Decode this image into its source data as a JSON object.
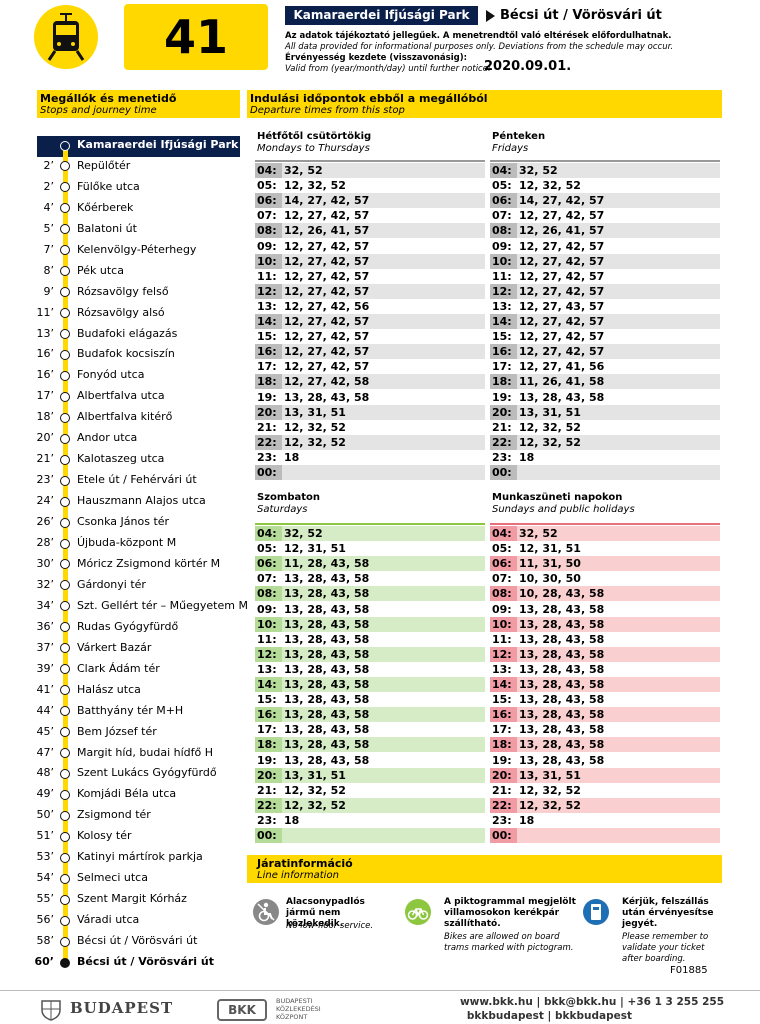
{
  "header": {
    "line": "41",
    "from": "Kamaraerdei Ifjúsági Park",
    "to": "Bécsi út / Vörösvári út",
    "note_hu": "Az adatok tájékoztató jellegűek. A menetrendtől való eltérések előfordulhatnak.",
    "note_en": "All data provided for informational purposes only. Deviations from the schedule may occur.",
    "valid_hu": "Érvényesség kezdete (visszavonásig):",
    "valid_en": "Valid from (year/month/day) until further notice:",
    "valid_date": "2020.09.01."
  },
  "stops": {
    "title_hu": "Megállók és menetidő",
    "title_en": "Stops and journey time",
    "items": [
      {
        "name": "Kamaraerdei Ifjúsági Park"
      },
      {
        "time": "2’",
        "name": "Repülőtér"
      },
      {
        "time": "2’",
        "name": "Fülőke utca"
      },
      {
        "time": "4’",
        "name": "Kőérberek"
      },
      {
        "time": "5’",
        "name": "Balatoni út"
      },
      {
        "time": "7’",
        "name": "Kelenvölgy-Péterhegy"
      },
      {
        "time": "8’",
        "name": "Pék utca"
      },
      {
        "time": "9’",
        "name": "Rózsavölgy felső"
      },
      {
        "time": "11’",
        "name": "Rózsavölgy alsó"
      },
      {
        "time": "13’",
        "name": "Budafoki elágazás"
      },
      {
        "time": "16’",
        "name": "Budafok kocsiszín"
      },
      {
        "time": "16’",
        "name": "Fonyód utca"
      },
      {
        "time": "17’",
        "name": "Albertfalva utca"
      },
      {
        "time": "18’",
        "name": "Albertfalva kitérő"
      },
      {
        "time": "20’",
        "name": "Andor utca"
      },
      {
        "time": "21’",
        "name": "Kalotaszeg utca"
      },
      {
        "time": "23’",
        "name": "Etele út / Fehérvári út"
      },
      {
        "time": "24’",
        "name": "Hauszmann Alajos utca"
      },
      {
        "time": "26’",
        "name": "Csonka János tér"
      },
      {
        "time": "28’",
        "name": "Újbuda-központ M"
      },
      {
        "time": "30’",
        "name": "Móricz Zsigmond körtér M"
      },
      {
        "time": "32’",
        "name": "Gárdonyi tér"
      },
      {
        "time": "34’",
        "name": "Szt. Gellért tér – Műegyetem M"
      },
      {
        "time": "36’",
        "name": "Rudas Gyógyfürdő"
      },
      {
        "time": "37’",
        "name": "Várkert Bazár"
      },
      {
        "time": "39’",
        "name": "Clark Ádám tér"
      },
      {
        "time": "41’",
        "name": "Halász utca"
      },
      {
        "time": "44’",
        "name": "Batthyány tér M+H"
      },
      {
        "time": "45’",
        "name": "Bem József tér"
      },
      {
        "time": "47’",
        "name": "Margit híd, budai hídfő H"
      },
      {
        "time": "48’",
        "name": "Szent Lukács Gyógyfürdő"
      },
      {
        "time": "49’",
        "name": "Komjádi Béla utca"
      },
      {
        "time": "50’",
        "name": "Zsigmond tér"
      },
      {
        "time": "51’",
        "name": "Kolosy tér"
      },
      {
        "time": "53’",
        "name": "Katinyi mártírok parkja"
      },
      {
        "time": "54’",
        "name": "Selmeci utca"
      },
      {
        "time": "55’",
        "name": "Szent Margit Kórház"
      },
      {
        "time": "56’",
        "name": "Váradi utca"
      },
      {
        "time": "58’",
        "name": "Bécsi út / Vörösvári út"
      },
      {
        "time": "60’",
        "name": "Bécsi út / Vörösvári út"
      }
    ]
  },
  "departures": {
    "title_hu": "Indulási időpontok ebből a megállóból",
    "title_en": "Departure times from this stop",
    "blocks": [
      {
        "title_hu": "Hétfőtől csütörtökig",
        "title_en": "Mondays to Thursdays",
        "rows": [
          [
            "04:",
            "32, 52"
          ],
          [
            "05:",
            "12, 32, 52"
          ],
          [
            "06:",
            "14, 27, 42, 57"
          ],
          [
            "07:",
            "12, 27, 42, 57"
          ],
          [
            "08:",
            "12, 26, 41, 57"
          ],
          [
            "09:",
            "12, 27, 42, 57"
          ],
          [
            "10:",
            "12, 27, 42, 57"
          ],
          [
            "11:",
            "12, 27, 42, 57"
          ],
          [
            "12:",
            "12, 27, 42, 57"
          ],
          [
            "13:",
            "12, 27, 42, 56"
          ],
          [
            "14:",
            "12, 27, 42, 57"
          ],
          [
            "15:",
            "12, 27, 42, 57"
          ],
          [
            "16:",
            "12, 27, 42, 57"
          ],
          [
            "17:",
            "12, 27, 42, 57"
          ],
          [
            "18:",
            "12, 27, 42, 58"
          ],
          [
            "19:",
            "13, 28, 43, 58"
          ],
          [
            "20:",
            "13, 31, 51"
          ],
          [
            "21:",
            "12, 32, 52"
          ],
          [
            "22:",
            "12, 32, 52"
          ],
          [
            "23:",
            "18"
          ],
          [
            "00:"
          ]
        ]
      },
      {
        "title_hu": "Pénteken",
        "title_en": "Fridays",
        "rows": [
          [
            "04:",
            "32, 52"
          ],
          [
            "05:",
            "12, 32, 52"
          ],
          [
            "06:",
            "14, 27, 42, 57"
          ],
          [
            "07:",
            "12, 27, 42, 57"
          ],
          [
            "08:",
            "12, 26, 41, 57"
          ],
          [
            "09:",
            "12, 27, 42, 57"
          ],
          [
            "10:",
            "12, 27, 42, 57"
          ],
          [
            "11:",
            "12, 27, 42, 57"
          ],
          [
            "12:",
            "12, 27, 42, 57"
          ],
          [
            "13:",
            "12, 27, 43, 57"
          ],
          [
            "14:",
            "12, 27, 42, 57"
          ],
          [
            "15:",
            "12, 27, 42, 57"
          ],
          [
            "16:",
            "12, 27, 42, 57"
          ],
          [
            "17:",
            "12, 27, 41, 56"
          ],
          [
            "18:",
            "11, 26, 41, 58"
          ],
          [
            "19:",
            "13, 28, 43, 58"
          ],
          [
            "20:",
            "13, 31, 51"
          ],
          [
            "21:",
            "12, 32, 52"
          ],
          [
            "22:",
            "12, 32, 52"
          ],
          [
            "23:",
            "18"
          ],
          [
            "00:"
          ]
        ]
      },
      {
        "title_hu": "Szombaton",
        "title_en": "Saturdays",
        "rows": [
          [
            "04:",
            "32, 52"
          ],
          [
            "05:",
            "12, 31, 51"
          ],
          [
            "06:",
            "11, 28, 43, 58"
          ],
          [
            "07:",
            "13, 28, 43, 58"
          ],
          [
            "08:",
            "13, 28, 43, 58"
          ],
          [
            "09:",
            "13, 28, 43, 58"
          ],
          [
            "10:",
            "13, 28, 43, 58"
          ],
          [
            "11:",
            "13, 28, 43, 58"
          ],
          [
            "12:",
            "13, 28, 43, 58"
          ],
          [
            "13:",
            "13, 28, 43, 58"
          ],
          [
            "14:",
            "13, 28, 43, 58"
          ],
          [
            "15:",
            "13, 28, 43, 58"
          ],
          [
            "16:",
            "13, 28, 43, 58"
          ],
          [
            "17:",
            "13, 28, 43, 58"
          ],
          [
            "18:",
            "13, 28, 43, 58"
          ],
          [
            "19:",
            "13, 28, 43, 58"
          ],
          [
            "20:",
            "13, 31, 51"
          ],
          [
            "21:",
            "12, 32, 52"
          ],
          [
            "22:",
            "12, 32, 52"
          ],
          [
            "23:",
            "18"
          ],
          [
            "00:"
          ]
        ]
      },
      {
        "title_hu": "Munkaszüneti napokon",
        "title_en": "Sundays and public holidays",
        "rows": [
          [
            "04:",
            "32, 52"
          ],
          [
            "05:",
            "12, 31, 51"
          ],
          [
            "06:",
            "11, 31, 50"
          ],
          [
            "07:",
            "10, 30, 50"
          ],
          [
            "08:",
            "10, 28, 43, 58"
          ],
          [
            "09:",
            "13, 28, 43, 58"
          ],
          [
            "10:",
            "13, 28, 43, 58"
          ],
          [
            "11:",
            "13, 28, 43, 58"
          ],
          [
            "12:",
            "13, 28, 43, 58"
          ],
          [
            "13:",
            "13, 28, 43, 58"
          ],
          [
            "14:",
            "13, 28, 43, 58"
          ],
          [
            "15:",
            "13, 28, 43, 58"
          ],
          [
            "16:",
            "13, 28, 43, 58"
          ],
          [
            "17:",
            "13, 28, 43, 58"
          ],
          [
            "18:",
            "13, 28, 43, 58"
          ],
          [
            "19:",
            "13, 28, 43, 58"
          ],
          [
            "20:",
            "13, 31, 51"
          ],
          [
            "21:",
            "12, 32, 52"
          ],
          [
            "22:",
            "12, 32, 52"
          ],
          [
            "23:",
            "18"
          ],
          [
            "00:"
          ]
        ]
      }
    ]
  },
  "info": {
    "title_hu": "Járatinformáció",
    "title_en": "Line information",
    "items": [
      {
        "bold": "Alacsonypadlós jármű nem közlekedik.",
        "text": "No low-floor service."
      },
      {
        "bold": "A piktogrammal megjelölt villamosokon kerékpár szállítható.",
        "text": "Bikes are allowed on board trams marked with pictogram."
      },
      {
        "bold": "Kérjük, felszállás után érvényesítse jegyét.",
        "text": "Please remember to validate your ticket after boarding."
      }
    ]
  },
  "footer": {
    "code": "F01885",
    "city": "BUDAPEST",
    "bkk": "BKK",
    "bkk_name": [
      "BUDAPESTI",
      "KÖZLEKEDÉSI",
      "KÖZPONT"
    ],
    "contact": "www.bkk.hu | bkk@bkk.hu | +36 1 3 255 255",
    "social": "bkkbudapest | bkkbudapest"
  }
}
